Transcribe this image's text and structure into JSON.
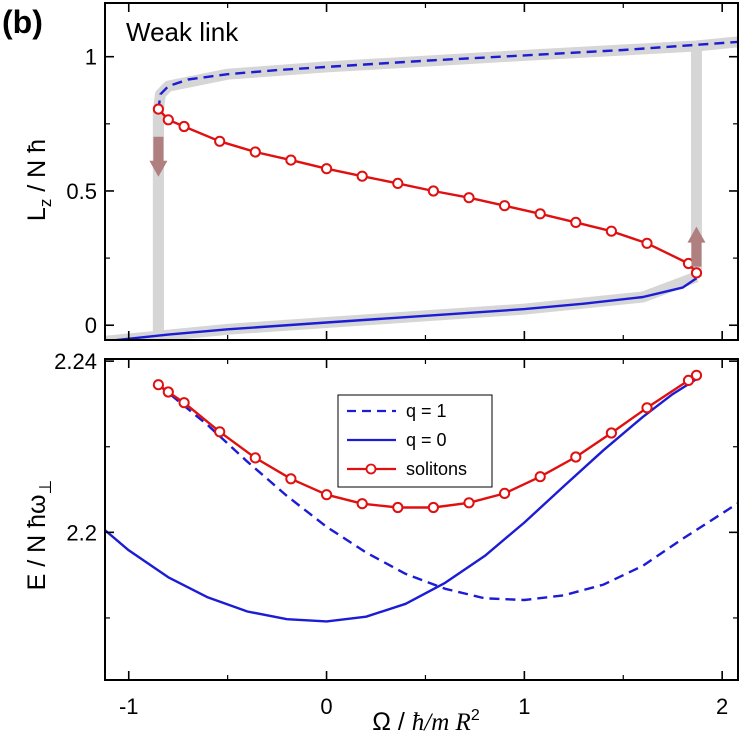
{
  "figure": {
    "panel_label": "(b)"
  },
  "chart_data": [
    {
      "type": "line",
      "id": "top",
      "annotation": "Weak link",
      "ylabel": "L_z / N ħ",
      "xlabel": "",
      "xlim": [
        -1.12,
        2.08
      ],
      "ylim": [
        -0.055,
        1.2
      ],
      "xticks": [
        -1,
        0,
        1,
        2
      ],
      "yticks": [
        0,
        0.5,
        1
      ],
      "ytick_labels": [
        "0",
        "0.5",
        "1"
      ],
      "series": [
        {
          "name": "q = 1 (upper branch)",
          "style": "dashed",
          "color": "#1c1cd4",
          "points": [
            [
              -0.85,
              0.8
            ],
            [
              -0.84,
              0.86
            ],
            [
              -0.8,
              0.89
            ],
            [
              -0.7,
              0.915
            ],
            [
              -0.5,
              0.935
            ],
            [
              -0.25,
              0.95
            ],
            [
              0,
              0.962
            ],
            [
              0.5,
              0.985
            ],
            [
              1,
              1.005
            ],
            [
              1.5,
              1.025
            ],
            [
              2.08,
              1.055
            ]
          ]
        },
        {
          "name": "q = 0 (lower branch)",
          "style": "solid",
          "color": "#1c1cd4",
          "points": [
            [
              -1.12,
              -0.06
            ],
            [
              -0.8,
              -0.035
            ],
            [
              -0.5,
              -0.015
            ],
            [
              0,
              0.01
            ],
            [
              0.5,
              0.035
            ],
            [
              1,
              0.06
            ],
            [
              1.3,
              0.08
            ],
            [
              1.6,
              0.105
            ],
            [
              1.8,
              0.14
            ],
            [
              1.87,
              0.175
            ]
          ]
        },
        {
          "name": "solitons",
          "style": "line-circles",
          "color": "#e01010",
          "points": [
            [
              -0.85,
              0.805
            ],
            [
              -0.8,
              0.765
            ],
            [
              -0.72,
              0.74
            ],
            [
              -0.54,
              0.685
            ],
            [
              -0.36,
              0.645
            ],
            [
              -0.18,
              0.615
            ],
            [
              0,
              0.583
            ],
            [
              0.18,
              0.555
            ],
            [
              0.36,
              0.528
            ],
            [
              0.54,
              0.5
            ],
            [
              0.72,
              0.475
            ],
            [
              0.9,
              0.445
            ],
            [
              1.08,
              0.415
            ],
            [
              1.26,
              0.383
            ],
            [
              1.44,
              0.35
            ],
            [
              1.62,
              0.305
            ],
            [
              1.83,
              0.23
            ],
            [
              1.87,
              0.195
            ]
          ]
        }
      ],
      "hysteresis_band": [
        [
          -0.85,
          -0.03
        ],
        [
          -0.85,
          0.8
        ],
        [
          -0.84,
          0.86
        ],
        [
          -0.8,
          0.89
        ],
        [
          -0.5,
          0.935
        ],
        [
          0,
          0.962
        ],
        [
          1,
          1.005
        ],
        [
          1.87,
          1.04
        ],
        [
          2.08,
          1.055
        ]
      ],
      "hysteresis_band_lower": [
        [
          -1.12,
          -0.06
        ],
        [
          -0.5,
          -0.015
        ],
        [
          0,
          0.01
        ],
        [
          1,
          0.06
        ],
        [
          1.6,
          0.105
        ],
        [
          1.87,
          0.18
        ]
      ],
      "transitions": [
        {
          "x": -0.85,
          "y_from": -0.03,
          "y_to": 0.8
        },
        {
          "x": 1.87,
          "y_from": 0.18,
          "y_to": 1.04
        }
      ],
      "arrows": [
        {
          "x": -0.85,
          "y": 0.62,
          "direction": "down",
          "color": "#b07f7f"
        },
        {
          "x": 1.87,
          "y": 0.3,
          "direction": "up",
          "color": "#b07f7f"
        }
      ]
    },
    {
      "type": "line",
      "id": "bottom",
      "ylabel": "E / N ħω⊥",
      "xlabel": "Ω / ħ/m R²",
      "xlim": [
        -1.12,
        2.08
      ],
      "ylim": [
        2.1655,
        2.2405
      ],
      "xticks": [
        -1,
        0,
        1,
        2
      ],
      "xtick_labels": [
        "-1",
        "0",
        "1",
        "2"
      ],
      "yticks": [
        2.2,
        2.24
      ],
      "ytick_labels": [
        "2.2",
        "2.24"
      ],
      "legend": {
        "position": "center-top",
        "entries": [
          {
            "label": "q = 1",
            "style": "dashed",
            "color": "#1c1cd4"
          },
          {
            "label": "q = 0",
            "style": "solid",
            "color": "#1c1cd4"
          },
          {
            "label": "solitons",
            "style": "line-circles",
            "color": "#e01010"
          }
        ]
      },
      "series": [
        {
          "name": "q = 1",
          "style": "dashed",
          "color": "#1c1cd4",
          "points": [
            [
              -0.85,
              2.2345
            ],
            [
              -0.6,
              2.225
            ],
            [
              -0.4,
              2.2165
            ],
            [
              -0.2,
              2.2085
            ],
            [
              0,
              2.2013
            ],
            [
              0.2,
              2.1953
            ],
            [
              0.4,
              2.1903
            ],
            [
              0.6,
              2.1868
            ],
            [
              0.8,
              2.1846
            ],
            [
              1,
              2.1842
            ],
            [
              1.2,
              2.1853
            ],
            [
              1.4,
              2.1878
            ],
            [
              1.6,
              2.1922
            ],
            [
              1.8,
              2.1985
            ],
            [
              2.08,
              2.2068
            ]
          ]
        },
        {
          "name": "q = 0",
          "style": "solid",
          "color": "#1c1cd4",
          "points": [
            [
              -1.12,
              2.2005
            ],
            [
              -1,
              2.1958
            ],
            [
              -0.8,
              2.1895
            ],
            [
              -0.6,
              2.1848
            ],
            [
              -0.4,
              2.1815
            ],
            [
              -0.2,
              2.1797
            ],
            [
              0,
              2.1792
            ],
            [
              0.2,
              2.1803
            ],
            [
              0.4,
              2.1833
            ],
            [
              0.6,
              2.1882
            ],
            [
              0.8,
              2.1945
            ],
            [
              1,
              2.2023
            ],
            [
              1.2,
              2.2108
            ],
            [
              1.4,
              2.2192
            ],
            [
              1.6,
              2.227
            ],
            [
              1.75,
              2.2323
            ],
            [
              1.87,
              2.2358
            ]
          ]
        },
        {
          "name": "solitons",
          "style": "line-circles",
          "color": "#e01010",
          "points": [
            [
              -0.85,
              2.2345
            ],
            [
              -0.8,
              2.2328
            ],
            [
              -0.72,
              2.2303
            ],
            [
              -0.54,
              2.2235
            ],
            [
              -0.36,
              2.2174
            ],
            [
              -0.18,
              2.2125
            ],
            [
              0,
              2.2088
            ],
            [
              0.18,
              2.2067
            ],
            [
              0.36,
              2.2058
            ],
            [
              0.54,
              2.2058
            ],
            [
              0.72,
              2.2069
            ],
            [
              0.9,
              2.2091
            ],
            [
              1.08,
              2.213
            ],
            [
              1.26,
              2.2176
            ],
            [
              1.44,
              2.2232
            ],
            [
              1.62,
              2.2291
            ],
            [
              1.83,
              2.2355
            ],
            [
              1.87,
              2.2367
            ]
          ]
        }
      ]
    }
  ]
}
